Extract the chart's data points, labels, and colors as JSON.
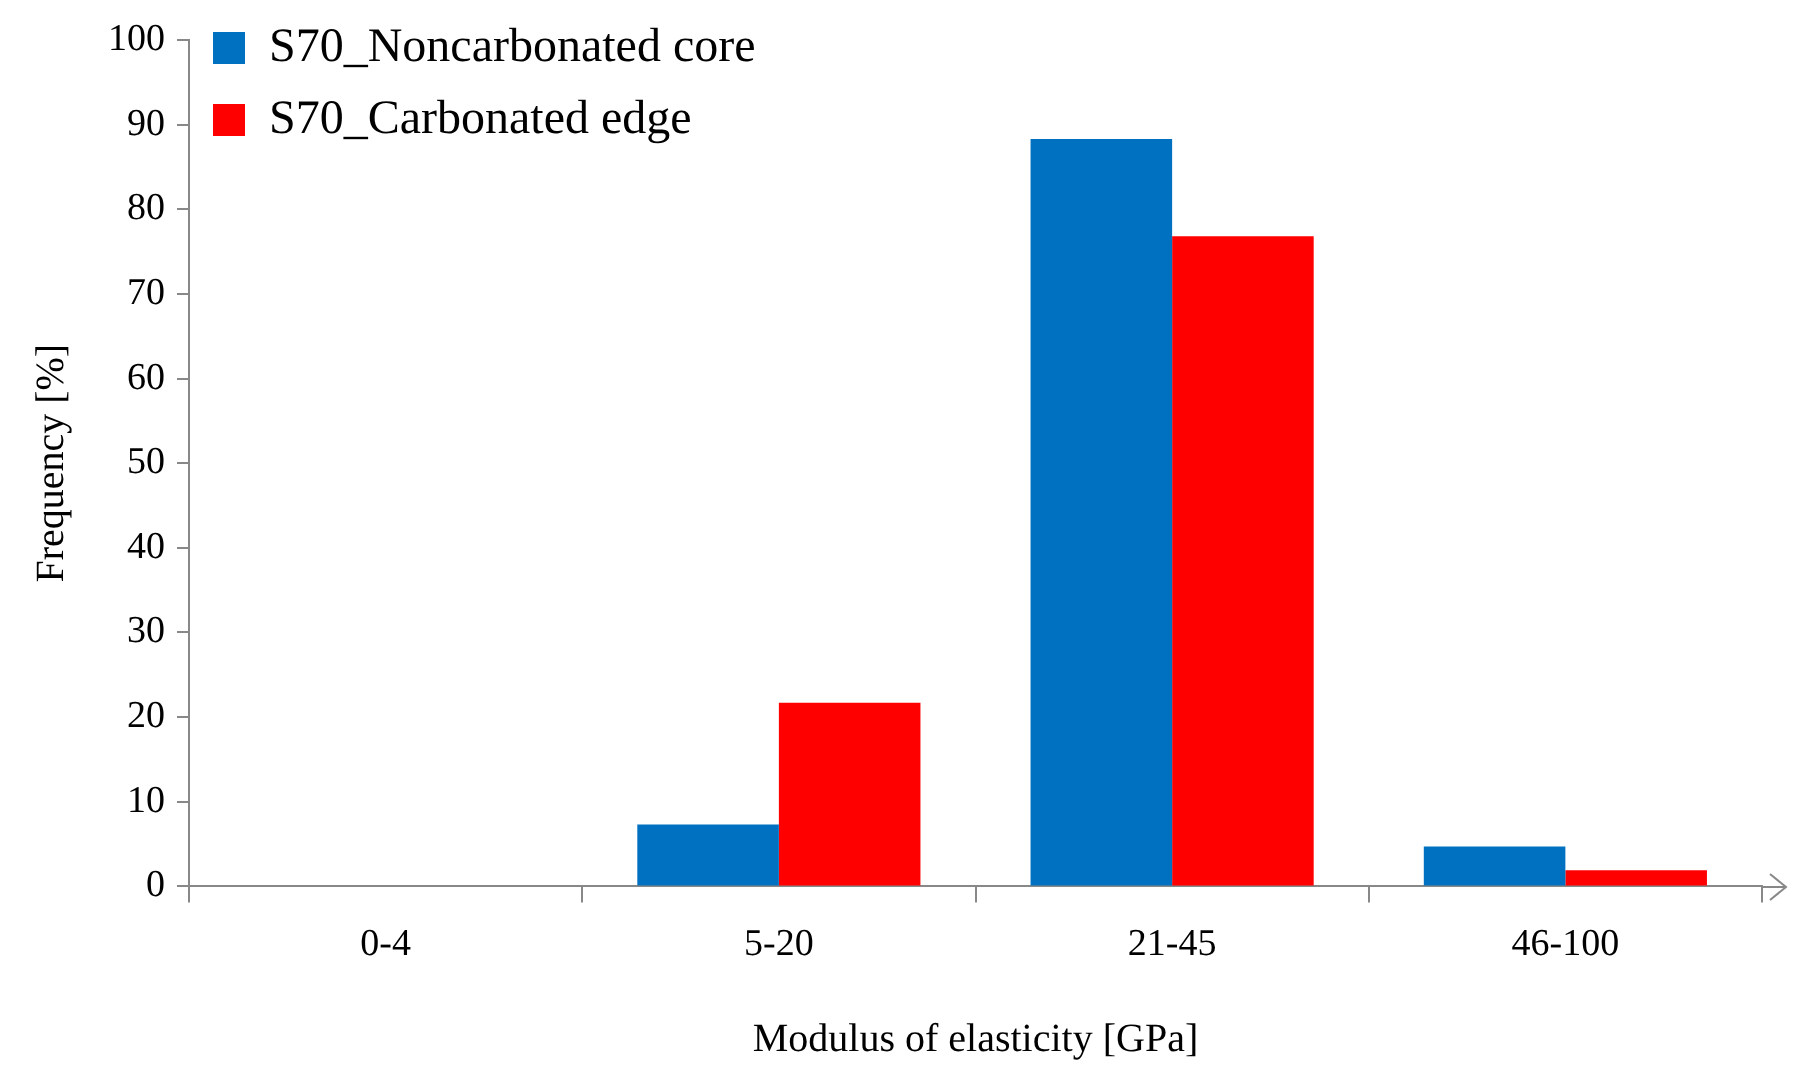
{
  "chart_data": {
    "type": "bar",
    "xlabel": "Modulus of elasticity [GPa]",
    "ylabel": "Frequency [%]",
    "categories": [
      "0-4",
      "5-20",
      "21-45",
      "46-100"
    ],
    "series": [
      {
        "name": "S70_Noncarbonated core",
        "color": "#0070c0",
        "values": [
          0,
          7.3,
          88.3,
          4.7
        ]
      },
      {
        "name": "S70_Carbonated edge",
        "color": "#ff0000",
        "values": [
          0,
          21.7,
          76.8,
          1.9
        ]
      }
    ],
    "ylim": [
      0,
      100
    ],
    "yticks": [
      0,
      10,
      20,
      30,
      40,
      50,
      60,
      70,
      80,
      90,
      100
    ],
    "grid": false,
    "legend": "top left"
  }
}
